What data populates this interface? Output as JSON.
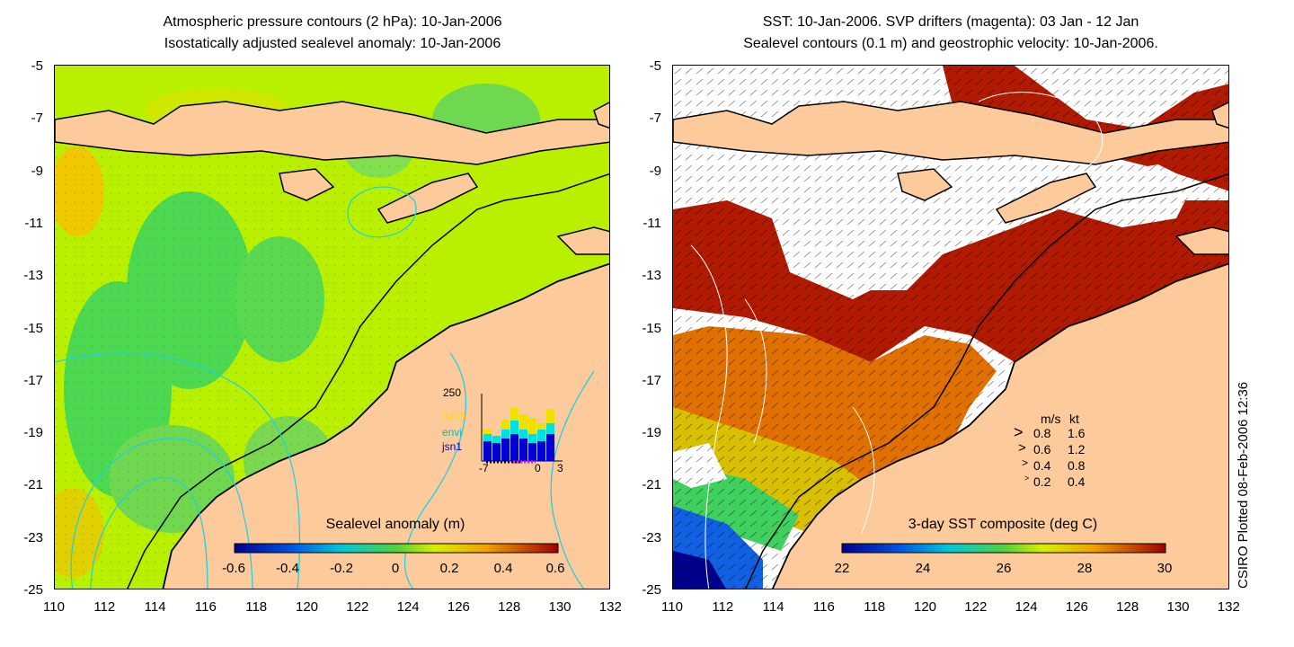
{
  "left_panel": {
    "title_line1": "Atmospheric pressure contours (2 hPa): 10-Jan-2006",
    "title_line2": "Isostatically adjusted sealevel anomaly: 10-Jan-2006",
    "colorbar_label": "Sealevel anomaly (m)",
    "colorbar_ticks": [
      "-0.6",
      "-0.4",
      "-0.2",
      "0",
      "0.2",
      "0.4",
      "0.6"
    ],
    "inset": {
      "ymax_label": "250",
      "series": [
        "GFO",
        "envi",
        "jsn1"
      ],
      "series_colors": [
        "#f0e000",
        "#00e0e0",
        "#0000d0"
      ],
      "x_labels": [
        "-7",
        "0",
        "3"
      ]
    }
  },
  "right_panel": {
    "title_line1": "SST: 10-Jan-2006. SVP drifters (magenta): 03 Jan - 12 Jan",
    "title_line2": "Sealevel contours (0.1 m) and geostrophic velocity: 10-Jan-2006.",
    "colorbar_label": "3-day SST composite (deg C)",
    "colorbar_ticks": [
      "22",
      "24",
      "26",
      "28",
      "30"
    ],
    "velocity_legend": {
      "header_ms": "m/s",
      "header_kt": "kt",
      "rows": [
        {
          "ms": "0.8",
          "kt": "1.6"
        },
        {
          "ms": "0.6",
          "kt": "1.2"
        },
        {
          "ms": "0.4",
          "kt": "0.8"
        },
        {
          "ms": "0.2",
          "kt": "0.4"
        }
      ]
    }
  },
  "axes": {
    "y_ticks": [
      "-5",
      "-7",
      "-9",
      "-11",
      "-13",
      "-15",
      "-17",
      "-19",
      "-21",
      "-23",
      "-25"
    ],
    "x_ticks": [
      "110",
      "112",
      "114",
      "116",
      "118",
      "120",
      "122",
      "124",
      "126",
      "128",
      "130",
      "132"
    ]
  },
  "credit": "CSIRO Plotted 08-Feb-2006 12:36",
  "colors": {
    "land": "#fdcb9b",
    "sst_warm": "#b01a00",
    "sla_base": "#b8f000"
  }
}
